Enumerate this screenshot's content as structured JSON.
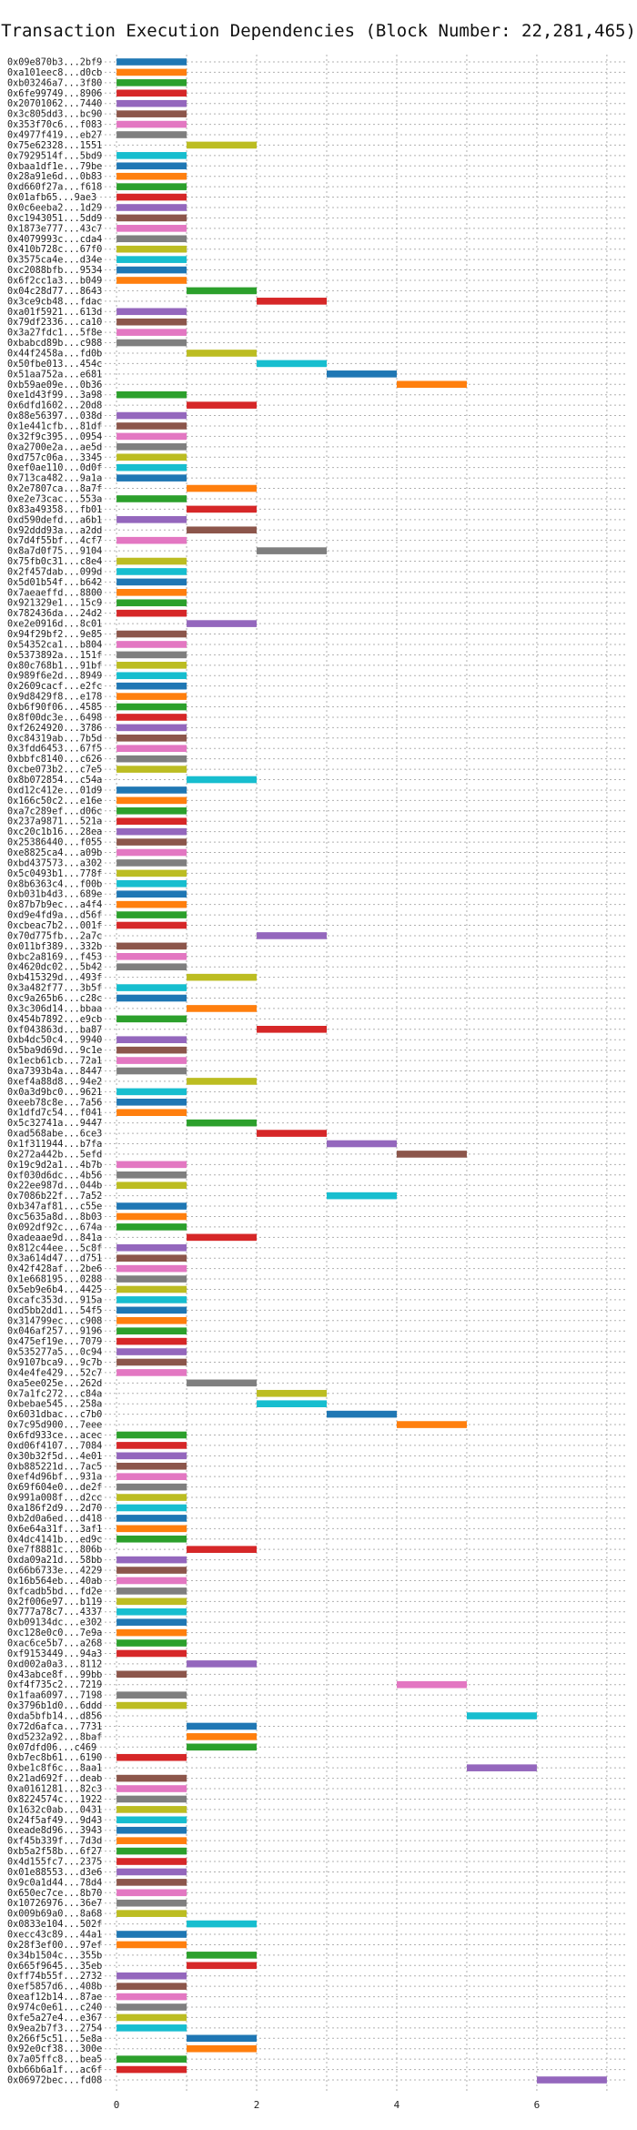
{
  "chart_data": {
    "type": "gantt",
    "title": "Transaction Execution Dependencies (Block Number: 22,281,465)",
    "xlabel": "",
    "ylabel": "",
    "xlim": [
      -0.3,
      7.3
    ],
    "x_ticks": [
      0,
      2,
      4,
      6
    ],
    "grid": true,
    "palette": [
      "#1f77b4",
      "#ff7f0e",
      "#2ca02c",
      "#d62728",
      "#9467bd",
      "#8c564b",
      "#e377c2",
      "#7f7f7f",
      "#bcbd22",
      "#17becf"
    ],
    "transactions": [
      {
        "label": "0x09e870b3...2bf9",
        "start": 0,
        "end": 1
      },
      {
        "label": "0xa101eec8...d0cb",
        "start": 0,
        "end": 1
      },
      {
        "label": "0xb03246a7...3f80",
        "start": 0,
        "end": 1
      },
      {
        "label": "0x6fe99749...8906",
        "start": 0,
        "end": 1
      },
      {
        "label": "0x20701062...7440",
        "start": 0,
        "end": 1
      },
      {
        "label": "0x3c805dd3...bc90",
        "start": 0,
        "end": 1
      },
      {
        "label": "0x353f70c6...f083",
        "start": 0,
        "end": 1
      },
      {
        "label": "0x4977f419...eb27",
        "start": 0,
        "end": 1
      },
      {
        "label": "0x75e62328...1551",
        "start": 1,
        "end": 2
      },
      {
        "label": "0x7929514f...5bd9",
        "start": 0,
        "end": 1
      },
      {
        "label": "0xbaa1df1e...79be",
        "start": 0,
        "end": 1
      },
      {
        "label": "0x28a91e6d...0b83",
        "start": 0,
        "end": 1
      },
      {
        "label": "0xd660f27a...f618",
        "start": 0,
        "end": 1
      },
      {
        "label": "0x01afb65...9ae3",
        "start": 0,
        "end": 1
      },
      {
        "label": "0x0c6eeba2...1d29",
        "start": 0,
        "end": 1
      },
      {
        "label": "0xc1943051...5dd9",
        "start": 0,
        "end": 1
      },
      {
        "label": "0x1873e777...43c7",
        "start": 0,
        "end": 1
      },
      {
        "label": "0x4079993c...cda4",
        "start": 0,
        "end": 1
      },
      {
        "label": "0x410b728c...67f0",
        "start": 0,
        "end": 1
      },
      {
        "label": "0x3575ca4e...d34e",
        "start": 0,
        "end": 1
      },
      {
        "label": "0xc2088bfb...9534",
        "start": 0,
        "end": 1
      },
      {
        "label": "0x6f2cc1a3...b049",
        "start": 0,
        "end": 1
      },
      {
        "label": "0x04c28d77...8643",
        "start": 1,
        "end": 2
      },
      {
        "label": "0x3ce9cb48...fdac",
        "start": 2,
        "end": 3
      },
      {
        "label": "0xa01f5921...613d",
        "start": 0,
        "end": 1
      },
      {
        "label": "0x79df2336...ca10",
        "start": 0,
        "end": 1
      },
      {
        "label": "0x3a27fdc1...5f8e",
        "start": 0,
        "end": 1
      },
      {
        "label": "0xbabcd89b...c988",
        "start": 0,
        "end": 1
      },
      {
        "label": "0x44f2458a...fd0b",
        "start": 1,
        "end": 2
      },
      {
        "label": "0x50fbe013...454c",
        "start": 2,
        "end": 3
      },
      {
        "label": "0x51aa752a...e681",
        "start": 3,
        "end": 4
      },
      {
        "label": "0xb59ae09e...0b36",
        "start": 4,
        "end": 5
      },
      {
        "label": "0xe1d43f99...3a98",
        "start": 0,
        "end": 1
      },
      {
        "label": "0x6dfd1602...20d8",
        "start": 1,
        "end": 2
      },
      {
        "label": "0x88e56397...038d",
        "start": 0,
        "end": 1
      },
      {
        "label": "0x1e441cfb...81df",
        "start": 0,
        "end": 1
      },
      {
        "label": "0x32f9c395...0954",
        "start": 0,
        "end": 1
      },
      {
        "label": "0xa2700e2a...ae5d",
        "start": 0,
        "end": 1
      },
      {
        "label": "0xd757c06a...3345",
        "start": 0,
        "end": 1
      },
      {
        "label": "0xef0ae110...0d0f",
        "start": 0,
        "end": 1
      },
      {
        "label": "0x713ca482...9a1a",
        "start": 0,
        "end": 1
      },
      {
        "label": "0x2e7807ca...8a7f",
        "start": 1,
        "end": 2
      },
      {
        "label": "0xe2e73cac...553a",
        "start": 0,
        "end": 1
      },
      {
        "label": "0x83a49358...fb01",
        "start": 1,
        "end": 2
      },
      {
        "label": "0xd590defd...a6b1",
        "start": 0,
        "end": 1
      },
      {
        "label": "0x92ddd93a...a2dd",
        "start": 1,
        "end": 2
      },
      {
        "label": "0x7d4f55bf...4cf7",
        "start": 0,
        "end": 1
      },
      {
        "label": "0x8a7d0f75...9104",
        "start": 2,
        "end": 3
      },
      {
        "label": "0x75fb0c31...c8e4",
        "start": 0,
        "end": 1
      },
      {
        "label": "0x2f457dab...099d",
        "start": 0,
        "end": 1
      },
      {
        "label": "0x5d01b54f...b642",
        "start": 0,
        "end": 1
      },
      {
        "label": "0x7aeaeffd...8800",
        "start": 0,
        "end": 1
      },
      {
        "label": "0x921329e1...15c9",
        "start": 0,
        "end": 1
      },
      {
        "label": "0x782436da...24d2",
        "start": 0,
        "end": 1
      },
      {
        "label": "0xe2e0916d...8c01",
        "start": 1,
        "end": 2
      },
      {
        "label": "0x94f29bf2...9e85",
        "start": 0,
        "end": 1
      },
      {
        "label": "0x54352ca1...b804",
        "start": 0,
        "end": 1
      },
      {
        "label": "0x5373892a...151f",
        "start": 0,
        "end": 1
      },
      {
        "label": "0x80c768b1...91bf",
        "start": 0,
        "end": 1
      },
      {
        "label": "0x989f6e2d...8949",
        "start": 0,
        "end": 1
      },
      {
        "label": "0x2609cacf...e2fc",
        "start": 0,
        "end": 1
      },
      {
        "label": "0x9d8429f8...e178",
        "start": 0,
        "end": 1
      },
      {
        "label": "0xb6f90f06...4585",
        "start": 0,
        "end": 1
      },
      {
        "label": "0x8f00dc3e...6498",
        "start": 0,
        "end": 1
      },
      {
        "label": "0xf2624920...3786",
        "start": 0,
        "end": 1
      },
      {
        "label": "0xc84319ab...7b5d",
        "start": 0,
        "end": 1
      },
      {
        "label": "0x3fdd6453...67f5",
        "start": 0,
        "end": 1
      },
      {
        "label": "0xbbfc8140...c626",
        "start": 0,
        "end": 1
      },
      {
        "label": "0xcbe073b2...c7e5",
        "start": 0,
        "end": 1
      },
      {
        "label": "0x8b072854...c54a",
        "start": 1,
        "end": 2
      },
      {
        "label": "0xd12c412e...01d9",
        "start": 0,
        "end": 1
      },
      {
        "label": "0x166c50c2...e16e",
        "start": 0,
        "end": 1
      },
      {
        "label": "0xa7c289ef...d06c",
        "start": 0,
        "end": 1
      },
      {
        "label": "0x237a9871...521a",
        "start": 0,
        "end": 1
      },
      {
        "label": "0xc20c1b16...28ea",
        "start": 0,
        "end": 1
      },
      {
        "label": "0x25386440...f055",
        "start": 0,
        "end": 1
      },
      {
        "label": "0xe8825ca4...a09b",
        "start": 0,
        "end": 1
      },
      {
        "label": "0xbd437573...a302",
        "start": 0,
        "end": 1
      },
      {
        "label": "0x5c0493b1...778f",
        "start": 0,
        "end": 1
      },
      {
        "label": "0x8b6363c4...f00b",
        "start": 0,
        "end": 1
      },
      {
        "label": "0xb031b4d3...689e",
        "start": 0,
        "end": 1
      },
      {
        "label": "0x87b7b9ec...a4f4",
        "start": 0,
        "end": 1
      },
      {
        "label": "0xd9e4fd9a...d56f",
        "start": 0,
        "end": 1
      },
      {
        "label": "0xcbeac7b2...001f",
        "start": 0,
        "end": 1
      },
      {
        "label": "0x70d775fb...2a7c",
        "start": 2,
        "end": 3
      },
      {
        "label": "0x011bf389...332b",
        "start": 0,
        "end": 1
      },
      {
        "label": "0xbc2a8169...f453",
        "start": 0,
        "end": 1
      },
      {
        "label": "0x4620dc02...5b42",
        "start": 0,
        "end": 1
      },
      {
        "label": "0xb415329d...493f",
        "start": 1,
        "end": 2
      },
      {
        "label": "0x3a482f77...3b5f",
        "start": 0,
        "end": 1
      },
      {
        "label": "0xc9a265b6...c28c",
        "start": 0,
        "end": 1
      },
      {
        "label": "0x3c306d14...bbaa",
        "start": 1,
        "end": 2
      },
      {
        "label": "0x454b7892...e9cb",
        "start": 0,
        "end": 1
      },
      {
        "label": "0xf043863d...ba87",
        "start": 2,
        "end": 3
      },
      {
        "label": "0xb4dc50c4...9940",
        "start": 0,
        "end": 1
      },
      {
        "label": "0x5ba9d69d...9c1e",
        "start": 0,
        "end": 1
      },
      {
        "label": "0x1ecb61cb...72a1",
        "start": 0,
        "end": 1
      },
      {
        "label": "0xa7393b4a...8447",
        "start": 0,
        "end": 1
      },
      {
        "label": "0xef4a88d8...94e2",
        "start": 1,
        "end": 2
      },
      {
        "label": "0x0a3d9bc0...9621",
        "start": 0,
        "end": 1
      },
      {
        "label": "0xeeb78c8e...7a56",
        "start": 0,
        "end": 1
      },
      {
        "label": "0x1dfd7c54...f041",
        "start": 0,
        "end": 1
      },
      {
        "label": "0x5c32741a...9447",
        "start": 1,
        "end": 2
      },
      {
        "label": "0xad568abe...6ce3",
        "start": 2,
        "end": 3
      },
      {
        "label": "0x1f311944...b7fa",
        "start": 3,
        "end": 4
      },
      {
        "label": "0x272a442b...5efd",
        "start": 4,
        "end": 5
      },
      {
        "label": "0x19c9d2a1...4b7b",
        "start": 0,
        "end": 1
      },
      {
        "label": "0xf030d6dc...4b56",
        "start": 0,
        "end": 1
      },
      {
        "label": "0x22ee987d...044b",
        "start": 0,
        "end": 1
      },
      {
        "label": "0x7086b22f...7a52",
        "start": 3,
        "end": 4
      },
      {
        "label": "0xb347af81...c55e",
        "start": 0,
        "end": 1
      },
      {
        "label": "0xc5635a8d...8b03",
        "start": 0,
        "end": 1
      },
      {
        "label": "0x092df92c...674a",
        "start": 0,
        "end": 1
      },
      {
        "label": "0xadeaae9d...841a",
        "start": 1,
        "end": 2
      },
      {
        "label": "0x812c44ee...5c8f",
        "start": 0,
        "end": 1
      },
      {
        "label": "0x3a614d47...d751",
        "start": 0,
        "end": 1
      },
      {
        "label": "0x42f428af...2be6",
        "start": 0,
        "end": 1
      },
      {
        "label": "0x1e668195...0288",
        "start": 0,
        "end": 1
      },
      {
        "label": "0x5eb9e6b4...4425",
        "start": 0,
        "end": 1
      },
      {
        "label": "0xcafc353d...915a",
        "start": 0,
        "end": 1
      },
      {
        "label": "0xd5bb2dd1...54f5",
        "start": 0,
        "end": 1
      },
      {
        "label": "0x314799ec...c908",
        "start": 0,
        "end": 1
      },
      {
        "label": "0x046af257...9196",
        "start": 0,
        "end": 1
      },
      {
        "label": "0x475ef19e...7079",
        "start": 0,
        "end": 1
      },
      {
        "label": "0x535277a5...0c94",
        "start": 0,
        "end": 1
      },
      {
        "label": "0x9107bca9...9c7b",
        "start": 0,
        "end": 1
      },
      {
        "label": "0x4e4fe429...52c7",
        "start": 0,
        "end": 1
      },
      {
        "label": "0xa5ee025e...262d",
        "start": 1,
        "end": 2
      },
      {
        "label": "0x7a1fc272...c84a",
        "start": 2,
        "end": 3
      },
      {
        "label": "0xbebae545...258a",
        "start": 2,
        "end": 3
      },
      {
        "label": "0x6031dbac...c7b0",
        "start": 3,
        "end": 4
      },
      {
        "label": "0x7c95d900...7eee",
        "start": 4,
        "end": 5
      },
      {
        "label": "0x6fd933ce...acec",
        "start": 0,
        "end": 1
      },
      {
        "label": "0xd06f4107...7084",
        "start": 0,
        "end": 1
      },
      {
        "label": "0x30b32f5d...4e01",
        "start": 0,
        "end": 1
      },
      {
        "label": "0xb885221d...7ac5",
        "start": 0,
        "end": 1
      },
      {
        "label": "0xef4d96bf...931a",
        "start": 0,
        "end": 1
      },
      {
        "label": "0x69f604e0...de2f",
        "start": 0,
        "end": 1
      },
      {
        "label": "0x991a008f...d2cc",
        "start": 0,
        "end": 1
      },
      {
        "label": "0xa186f2d9...2d70",
        "start": 0,
        "end": 1
      },
      {
        "label": "0xb2d0a6ed...d418",
        "start": 0,
        "end": 1
      },
      {
        "label": "0x6e64a31f...3af1",
        "start": 0,
        "end": 1
      },
      {
        "label": "0x4dc4141b...ed9c",
        "start": 0,
        "end": 1
      },
      {
        "label": "0xe7f8881c...806b",
        "start": 1,
        "end": 2
      },
      {
        "label": "0xda09a21d...58bb",
        "start": 0,
        "end": 1
      },
      {
        "label": "0x66b6733e...4229",
        "start": 0,
        "end": 1
      },
      {
        "label": "0x16b564eb...40ab",
        "start": 0,
        "end": 1
      },
      {
        "label": "0xfcadb5bd...fd2e",
        "start": 0,
        "end": 1
      },
      {
        "label": "0x2f006e97...b119",
        "start": 0,
        "end": 1
      },
      {
        "label": "0x777a78c7...4337",
        "start": 0,
        "end": 1
      },
      {
        "label": "0xb09134dc...e302",
        "start": 0,
        "end": 1
      },
      {
        "label": "0xc128e0c0...7e9a",
        "start": 0,
        "end": 1
      },
      {
        "label": "0xac6ce5b7...a268",
        "start": 0,
        "end": 1
      },
      {
        "label": "0xf9153449...94a3",
        "start": 0,
        "end": 1
      },
      {
        "label": "0xd002a0a3...8112",
        "start": 1,
        "end": 2
      },
      {
        "label": "0x43abce8f...99bb",
        "start": 0,
        "end": 1
      },
      {
        "label": "0xf4f735c2...7219",
        "start": 4,
        "end": 5
      },
      {
        "label": "0x1faa6097...7198",
        "start": 0,
        "end": 1
      },
      {
        "label": "0x3796b1d0...6ddd",
        "start": 0,
        "end": 1
      },
      {
        "label": "0xda5bfb14...d856",
        "start": 5,
        "end": 6
      },
      {
        "label": "0x72d6afca...7731",
        "start": 1,
        "end": 2
      },
      {
        "label": "0xd5232a92...8baf",
        "start": 1,
        "end": 2
      },
      {
        "label": "0x07dfd06...c469",
        "start": 1,
        "end": 2
      },
      {
        "label": "0xb7ec8b61...6190",
        "start": 0,
        "end": 1
      },
      {
        "label": "0xbe1c8f6c...8aa1",
        "start": 5,
        "end": 6
      },
      {
        "label": "0x21ad692f...deab",
        "start": 0,
        "end": 1
      },
      {
        "label": "0xa0161281...82c3",
        "start": 0,
        "end": 1
      },
      {
        "label": "0x8224574c...1922",
        "start": 0,
        "end": 1
      },
      {
        "label": "0x1632c0ab...0431",
        "start": 0,
        "end": 1
      },
      {
        "label": "0x24f5af49...9d43",
        "start": 0,
        "end": 1
      },
      {
        "label": "0xeade8d96...3943",
        "start": 0,
        "end": 1
      },
      {
        "label": "0xf45b339f...7d3d",
        "start": 0,
        "end": 1
      },
      {
        "label": "0xb5a2f58b...6f27",
        "start": 0,
        "end": 1
      },
      {
        "label": "0x4d155fc7...2375",
        "start": 0,
        "end": 1
      },
      {
        "label": "0x01e88553...d3e6",
        "start": 0,
        "end": 1
      },
      {
        "label": "0x9c0a1d44...78d4",
        "start": 0,
        "end": 1
      },
      {
        "label": "0x650ec7ce...8b70",
        "start": 0,
        "end": 1
      },
      {
        "label": "0x10726976...36e7",
        "start": 0,
        "end": 1
      },
      {
        "label": "0x009b69a0...8a68",
        "start": 0,
        "end": 1
      },
      {
        "label": "0x0833e104...502f",
        "start": 1,
        "end": 2
      },
      {
        "label": "0xecc43c89...44a1",
        "start": 0,
        "end": 1
      },
      {
        "label": "0x28f3ef00...97ef",
        "start": 0,
        "end": 1
      },
      {
        "label": "0x34b1504c...355b",
        "start": 1,
        "end": 2
      },
      {
        "label": "0x665f9645...35eb",
        "start": 1,
        "end": 2
      },
      {
        "label": "0xff74b55f...2732",
        "start": 0,
        "end": 1
      },
      {
        "label": "0xef5857d6...408b",
        "start": 0,
        "end": 1
      },
      {
        "label": "0xeaf12b14...87ae",
        "start": 0,
        "end": 1
      },
      {
        "label": "0x974c0e61...c240",
        "start": 0,
        "end": 1
      },
      {
        "label": "0xfe5a27e4...e367",
        "start": 0,
        "end": 1
      },
      {
        "label": "0x9ea2b7f3...2754",
        "start": 0,
        "end": 1
      },
      {
        "label": "0x266f5c51...5e8a",
        "start": 1,
        "end": 2
      },
      {
        "label": "0x92e0cf38...300e",
        "start": 1,
        "end": 2
      },
      {
        "label": "0x7a05ffc8...bea5",
        "start": 0,
        "end": 1
      },
      {
        "label": "0xb66b6a1f...ac6f",
        "start": 0,
        "end": 1
      },
      {
        "label": "0x06972bec...fd08",
        "start": 6,
        "end": 7
      }
    ]
  }
}
